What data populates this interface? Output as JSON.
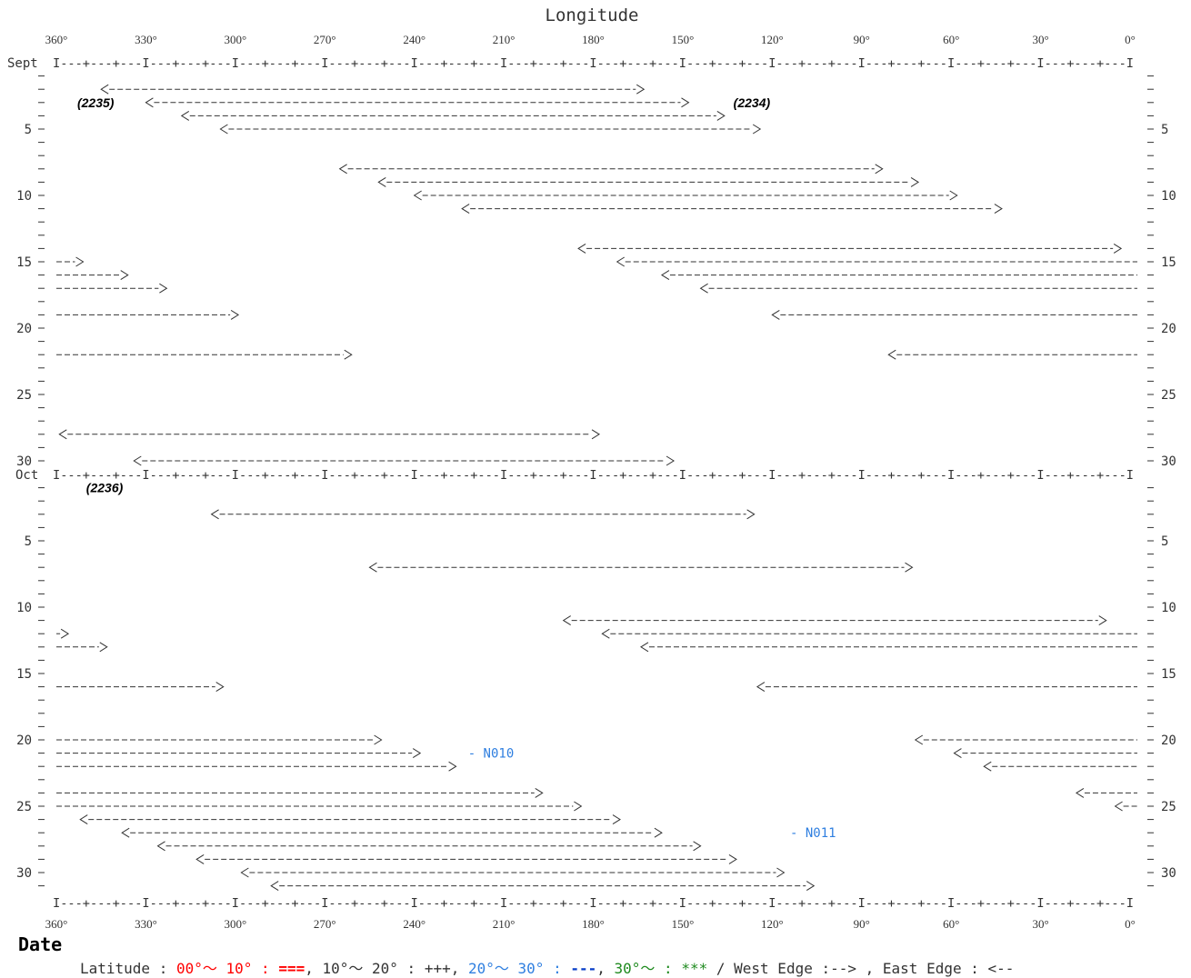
{
  "chart_data": {
    "type": "gantt",
    "title": "Longitude",
    "ylabel": "Date",
    "xlim": [
      360,
      0
    ],
    "x_ticks": [
      "360°",
      "330°",
      "300°",
      "270°",
      "240°",
      "210°",
      "180°",
      "150°",
      "120°",
      "90°",
      "60°",
      "30°",
      "0°"
    ],
    "sept_day_labels": [
      "5",
      "10",
      "15",
      "20",
      "25",
      "30"
    ],
    "oct_day_labels": [
      "5",
      "10",
      "15",
      "20",
      "25",
      "30"
    ],
    "month_labels": {
      "sept": "Sept",
      "oct": "Oct"
    },
    "ruler_text": "I---+---+---I---+---+---I---+---+---I---+---+---I---+---+---I---+---+---I---+---+---I---+---+---I---+---+---I---+---+---I---+---+---I---+---+---I",
    "rotation_labels": [
      {
        "text": "(2235)",
        "month": "sept",
        "day": 3,
        "lon": 353
      },
      {
        "text": "(2234)",
        "month": "sept",
        "day": 3,
        "lon": 133
      },
      {
        "text": "(2236)",
        "month": "oct",
        "day": 1,
        "lon": 350
      }
    ],
    "notes": [
      {
        "text": "- N010",
        "month": "oct",
        "day": 21,
        "lon": 222
      },
      {
        "text": "- N011",
        "month": "oct",
        "day": 27,
        "lon": 114
      }
    ],
    "spans": [
      {
        "month": "sept",
        "day": 2,
        "east": 345,
        "west": 163
      },
      {
        "month": "sept",
        "day": 3,
        "east": 330,
        "west": 148
      },
      {
        "month": "sept",
        "day": 4,
        "east": 318,
        "west": 136
      },
      {
        "month": "sept",
        "day": 5,
        "east": 305,
        "west": 124
      },
      {
        "month": "sept",
        "day": 8,
        "east": 265,
        "west": 83
      },
      {
        "month": "sept",
        "day": 9,
        "east": 252,
        "west": 71
      },
      {
        "month": "sept",
        "day": 10,
        "east": 240,
        "west": 58
      },
      {
        "month": "sept",
        "day": 11,
        "east": 224,
        "west": 43
      },
      {
        "month": "sept",
        "day": 14,
        "east": 185,
        "west": 3
      },
      {
        "month": "sept",
        "day": 15,
        "east": 172,
        "west": 0,
        "wrap": true
      },
      {
        "month": "sept",
        "day": 15,
        "east": 360,
        "west": 351,
        "wrap": true
      },
      {
        "month": "sept",
        "day": 16,
        "east": 157,
        "west": 0,
        "wrap": true
      },
      {
        "month": "sept",
        "day": 16,
        "east": 360,
        "west": 336,
        "wrap": true
      },
      {
        "month": "sept",
        "day": 17,
        "east": 144,
        "west": 0,
        "wrap": true
      },
      {
        "month": "sept",
        "day": 17,
        "east": 360,
        "west": 323,
        "wrap": true
      },
      {
        "month": "sept",
        "day": 19,
        "east": 120,
        "west": 0,
        "wrap": true
      },
      {
        "month": "sept",
        "day": 19,
        "east": 360,
        "west": 299,
        "wrap": true
      },
      {
        "month": "sept",
        "day": 22,
        "east": 81,
        "west": 0,
        "wrap": true
      },
      {
        "month": "sept",
        "day": 22,
        "east": 360,
        "west": 261,
        "wrap": true
      },
      {
        "month": "sept",
        "day": 28,
        "east": 359,
        "west": 178
      },
      {
        "month": "sept",
        "day": 30,
        "east": 334,
        "west": 153
      },
      {
        "month": "oct",
        "day": 3,
        "east": 308,
        "west": 126
      },
      {
        "month": "oct",
        "day": 7,
        "east": 255,
        "west": 73
      },
      {
        "month": "oct",
        "day": 11,
        "east": 190,
        "west": 8
      },
      {
        "month": "oct",
        "day": 12,
        "east": 177,
        "west": 0,
        "wrap": true
      },
      {
        "month": "oct",
        "day": 12,
        "east": 360,
        "west": 356,
        "wrap": true
      },
      {
        "month": "oct",
        "day": 13,
        "east": 164,
        "west": 0,
        "wrap": true
      },
      {
        "month": "oct",
        "day": 13,
        "east": 360,
        "west": 343,
        "wrap": true
      },
      {
        "month": "oct",
        "day": 16,
        "east": 125,
        "west": 0,
        "wrap": true
      },
      {
        "month": "oct",
        "day": 16,
        "east": 360,
        "west": 304,
        "wrap": true
      },
      {
        "month": "oct",
        "day": 20,
        "east": 72,
        "west": 0,
        "wrap": true
      },
      {
        "month": "oct",
        "day": 20,
        "east": 360,
        "west": 251,
        "wrap": true
      },
      {
        "month": "oct",
        "day": 21,
        "east": 59,
        "west": 0,
        "wrap": true
      },
      {
        "month": "oct",
        "day": 21,
        "east": 360,
        "west": 238,
        "wrap": true
      },
      {
        "month": "oct",
        "day": 22,
        "east": 49,
        "west": 0,
        "wrap": true
      },
      {
        "month": "oct",
        "day": 22,
        "east": 360,
        "west": 226,
        "wrap": true
      },
      {
        "month": "oct",
        "day": 24,
        "east": 18,
        "west": 0,
        "wrap": true
      },
      {
        "month": "oct",
        "day": 24,
        "east": 360,
        "west": 197,
        "wrap": true
      },
      {
        "month": "oct",
        "day": 25,
        "east": 5,
        "west": 0,
        "wrap": true
      },
      {
        "month": "oct",
        "day": 25,
        "east": 360,
        "west": 184,
        "wrap": true
      },
      {
        "month": "oct",
        "day": 26,
        "east": 352,
        "west": 171
      },
      {
        "month": "oct",
        "day": 27,
        "east": 338,
        "west": 157
      },
      {
        "month": "oct",
        "day": 28,
        "east": 326,
        "west": 144
      },
      {
        "month": "oct",
        "day": 29,
        "east": 313,
        "west": 132
      },
      {
        "month": "oct",
        "day": 30,
        "east": 298,
        "west": 116
      },
      {
        "month": "oct",
        "day": 31,
        "east": 288,
        "west": 106
      }
    ],
    "legend": {
      "latitude_label": "Latitude :",
      "items": [
        {
          "range": "00°～ 10°",
          "sep": " : ",
          "symbol": "===",
          "tail": ",",
          "color": "#ff0000",
          "symbol_color": "#ff0000",
          "bold": true
        },
        {
          "range": "10°～ 20°",
          "sep": " : ",
          "symbol": "+++",
          "tail": ",",
          "color": "#333333",
          "symbol_color": "#333333",
          "bold": false
        },
        {
          "range": "20°～ 30°",
          "sep": " : ",
          "symbol": "---",
          "tail": ",",
          "color": "#2f7fe0",
          "symbol_color": "#0a3fc8",
          "bold": true
        },
        {
          "range": "30°～",
          "sep": " : ",
          "symbol": "***",
          "tail": "",
          "color": "#1e8a1e",
          "symbol_color": "#1e8a1e",
          "bold": false
        }
      ],
      "slash": "/",
      "edges": "West Edge :-->  , East Edge : <--"
    },
    "colors": {
      "ink": "#333333",
      "note": "#2f7fe0",
      "background": "#ffffff"
    }
  }
}
